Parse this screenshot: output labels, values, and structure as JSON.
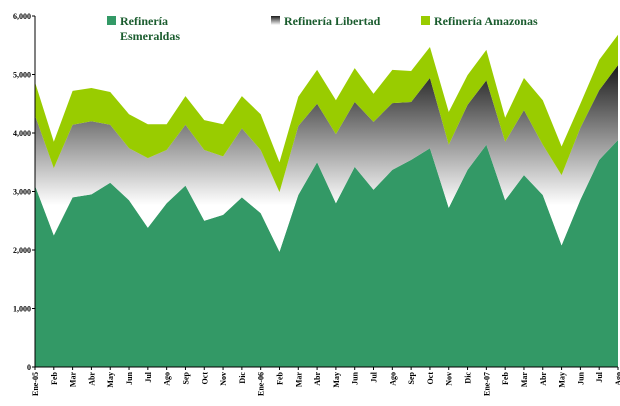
{
  "chart_data": {
    "type": "stacked_area",
    "categories": [
      "Ene-05",
      "Feb",
      "Mar",
      "Abr",
      "May",
      "Jun",
      "Jul",
      "Ago",
      "Sep",
      "Oct",
      "Nov",
      "Dic",
      "Ene-06",
      "Feb",
      "Mar",
      "Abr",
      "May",
      "Jun",
      "Jul",
      "Ago",
      "Sep",
      "Oct",
      "Nov",
      "Dic",
      "Ene-07",
      "Feb",
      "Mar",
      "Abr",
      "May",
      "Jun",
      "Jul",
      "Ago"
    ],
    "series": [
      {
        "name": "Refinería Esmeraldas",
        "color": "#339966",
        "values": [
          3100,
          2250,
          2900,
          2950,
          3150,
          2850,
          2380,
          2800,
          3100,
          2500,
          2600,
          2900,
          2630,
          1970,
          2940,
          3500,
          2800,
          3420,
          3030,
          3370,
          3540,
          3740,
          2720,
          3370,
          3800,
          2850,
          3280,
          2940,
          2080,
          2860,
          3540,
          3880
        ]
      },
      {
        "name": "Refinería Libertad",
        "color": "#1a1a1a",
        "values": [
          1200,
          1150,
          1240,
          1250,
          990,
          890,
          1190,
          910,
          1040,
          1210,
          1000,
          1180,
          1080,
          1020,
          1180,
          1000,
          1180,
          1110,
          1160,
          1140,
          990,
          1200,
          1080,
          1110,
          1100,
          1000,
          1110,
          860,
          1200,
          1230,
          1190,
          1280
        ]
      },
      {
        "name": "Refinería Amazonas",
        "color": "#99cc00",
        "values": [
          570,
          450,
          580,
          570,
          560,
          580,
          580,
          440,
          490,
          510,
          550,
          550,
          610,
          510,
          500,
          580,
          580,
          580,
          480,
          570,
          530,
          530,
          560,
          510,
          520,
          410,
          550,
          760,
          490,
          410,
          520,
          520
        ]
      }
    ],
    "ylim": [
      0,
      6000
    ],
    "yticks": [
      0,
      {
        "value": 1000,
        "label": "1,000"
      },
      {
        "value": 2000,
        "label": "2,000"
      },
      {
        "value": 3000,
        "label": "3,000"
      },
      {
        "value": 4000,
        "label": "4,000"
      },
      {
        "value": 5000,
        "label": "5,000"
      },
      {
        "value": 6000,
        "label": "6,000"
      }
    ],
    "grid": false
  }
}
